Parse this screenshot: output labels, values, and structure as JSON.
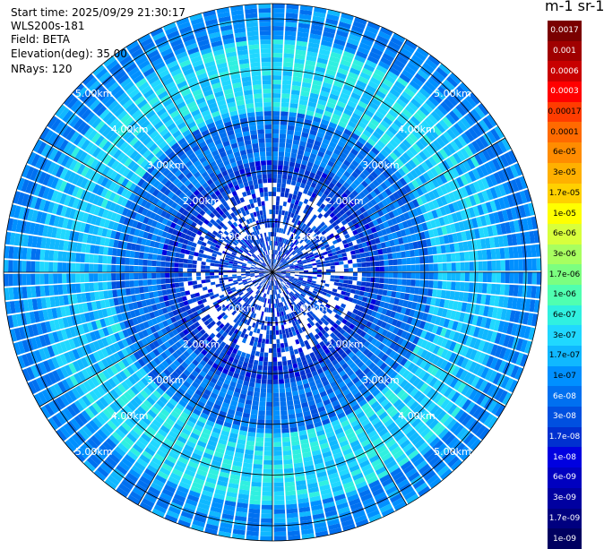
{
  "header": {
    "start_time": "Start time: 2025/09/29 21:30:17",
    "instrument": "WLS200s-181",
    "field": "Field: BETA",
    "elevation": "Elevation(deg): 35.00",
    "nrays": "NRays: 120"
  },
  "colorbar": {
    "unit_label": "m-1 sr-1",
    "labels": [
      "0.0017",
      "0.001",
      "0.0006",
      "0.0003",
      "0.00017",
      "0.0001",
      "6e-05",
      "3e-05",
      "1.7e-05",
      "1e-05",
      "6e-06",
      "3e-06",
      "1.7e-06",
      "1e-06",
      "6e-07",
      "3e-07",
      "1.7e-07",
      "1e-07",
      "6e-08",
      "3e-08",
      "1.7e-08",
      "1e-08",
      "6e-09",
      "3e-09",
      "1.7e-09",
      "1e-09"
    ],
    "colors": [
      "#7a0000",
      "#a00000",
      "#c80000",
      "#ff0000",
      "#ff3c00",
      "#ff6a00",
      "#ff8c00",
      "#ffb000",
      "#ffd000",
      "#ffff00",
      "#d8ff3c",
      "#a8ff60",
      "#7cff80",
      "#50ffb0",
      "#30f0e0",
      "#20d8ff",
      "#10b8ff",
      "#0090ff",
      "#0070f0",
      "#0050e0",
      "#0030d0",
      "#0000e0",
      "#0000c0",
      "#0000a0",
      "#000080",
      "#000060"
    ],
    "text_colors": [
      "#fff",
      "#fff",
      "#fff",
      "#fff",
      "#000",
      "#000",
      "#000",
      "#000",
      "#000",
      "#000",
      "#000",
      "#000",
      "#000",
      "#000",
      "#000",
      "#000",
      "#000",
      "#000",
      "#fff",
      "#fff",
      "#fff",
      "#fff",
      "#fff",
      "#fff",
      "#fff",
      "#fff"
    ]
  },
  "chart_data": {
    "type": "heatmap",
    "projection": "polar (PPI)",
    "field": "BETA",
    "elevation_deg": 35.0,
    "n_rays": 120,
    "max_range_km": 5.3,
    "range_rings_km": [
      1,
      2,
      3,
      4,
      5
    ],
    "ring_labels": [
      "1.00km",
      "2.00km",
      "3.00km",
      "4.00km",
      "5.00km"
    ],
    "typical_values": {
      "inner_0_to_2km": "1e-08 to 3e-08",
      "ring_band_3.5_to_4.5km": "1e-07 to 3e-07",
      "outer": "3e-08 to 6e-08"
    }
  }
}
